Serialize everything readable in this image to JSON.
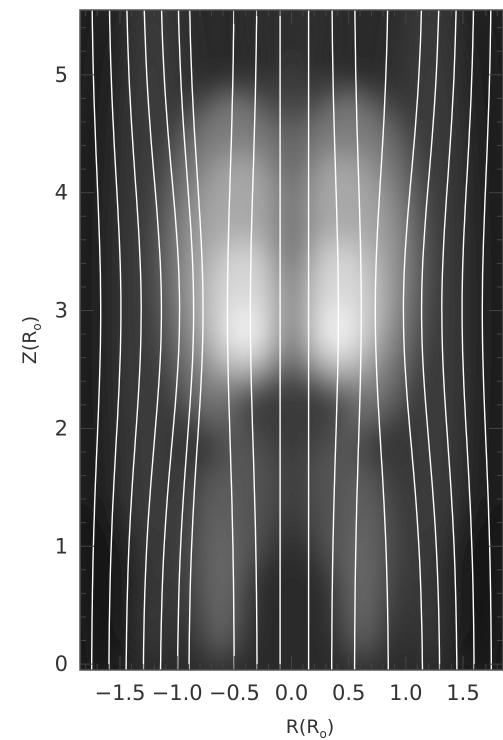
{
  "chart_data": {
    "type": "heatmap",
    "xlabel": {
      "main": "R(R",
      "sub": "o",
      "close": ")"
    },
    "ylabel": {
      "main": "Z(R",
      "sub": "o",
      "close": ")"
    },
    "xlim": [
      -1.85,
      1.85
    ],
    "ylim": [
      -0.05,
      5.55
    ],
    "x_ticks": [
      -1.5,
      -1.0,
      -0.5,
      0.0,
      0.5,
      1.0,
      1.5
    ],
    "x_tick_labels": [
      "−1.5",
      "−1.0",
      "−0.5",
      "0.0",
      "0.5",
      "1.0",
      "1.5"
    ],
    "y_ticks": [
      0,
      1,
      2,
      3,
      4,
      5
    ],
    "y_tick_labels": [
      "0",
      "1",
      "2",
      "3",
      "4",
      "5"
    ],
    "colormap": "grayscale",
    "field_lines": {
      "color": "#ffffff",
      "footpoints_r": [
        -1.75,
        -1.6,
        -1.45,
        -1.3,
        -1.15,
        -1.0,
        -0.9,
        -0.5,
        -0.3,
        -0.1,
        0.15,
        0.35,
        0.55,
        0.85,
        1.15,
        1.3,
        1.45,
        1.6,
        1.75
      ]
    }
  }
}
